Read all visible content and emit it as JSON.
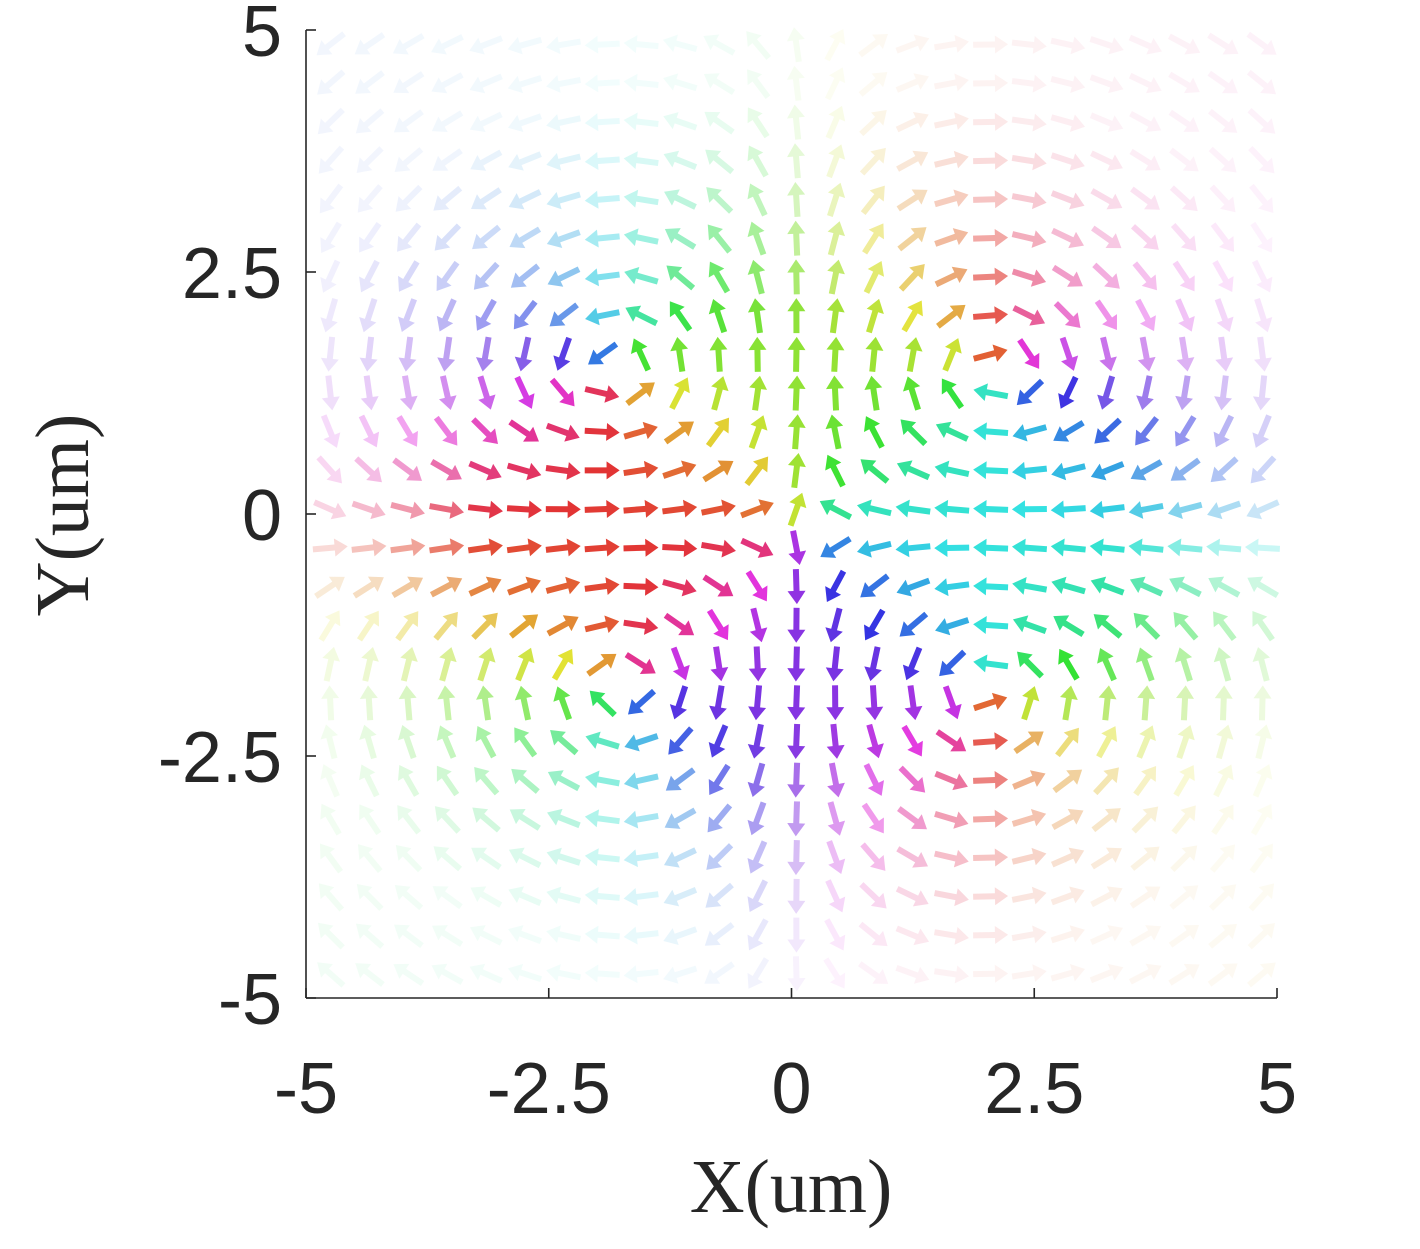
{
  "chart_data": {
    "type": "quiver",
    "title": "",
    "xlabel": "X(um)",
    "ylabel": "Y(um)",
    "xlim": [
      -5,
      5
    ],
    "ylim": [
      -5,
      5
    ],
    "x_ticks": [
      "-5",
      "-2.5",
      "0",
      "2.5",
      "5"
    ],
    "y_ticks": [
      "5",
      "2.5",
      "0",
      "-2.5",
      "-5"
    ],
    "grid": false,
    "legend": "none",
    "field": {
      "description_of_values": "2D in-plane vector field on a regular grid",
      "grid_start": -4.75,
      "grid_step": 0.4,
      "grid_count": 25,
      "vortex_centers": [
        [
          -1.5,
          0.6
        ],
        [
          1.8,
          0.6
        ],
        [
          -1.4,
          -0.8
        ],
        [
          1.7,
          -0.9
        ]
      ],
      "vortex_circulation": [
        1,
        -1,
        -1,
        1
      ],
      "core_radius": 1.6,
      "color_encoding": "hue by in-plane direction, opacity by magnitude"
    }
  }
}
